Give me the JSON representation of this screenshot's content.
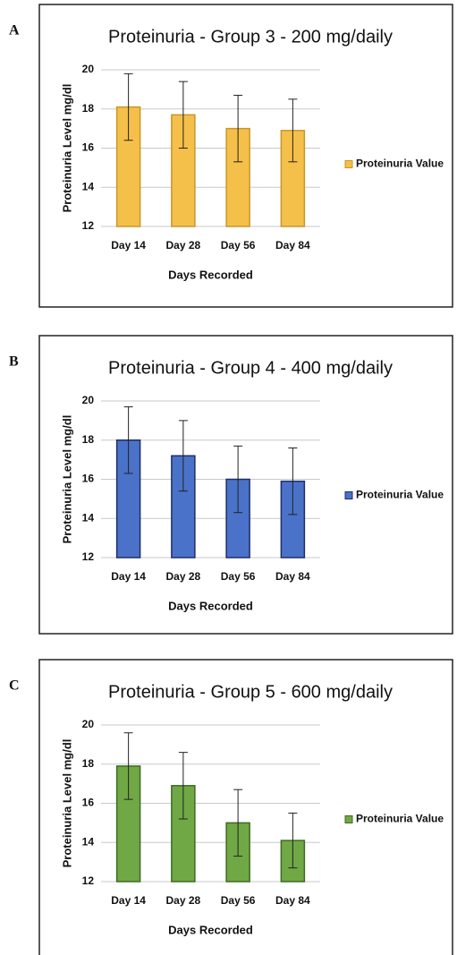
{
  "chart_data": [
    {
      "type": "bar",
      "panel": "A",
      "title": "Proteinuria - Group 3 - 200 mg/daily",
      "categories": [
        "Day 14",
        "Day 28",
        "Day 56",
        "Day 84"
      ],
      "series": [
        {
          "name": "Proteinuria Value",
          "color": "#f5c04a",
          "edgecolor": "#c8962a",
          "values": [
            18.1,
            17.7,
            17.0,
            16.9
          ],
          "errors": [
            1.7,
            1.7,
            1.7,
            1.6
          ]
        }
      ],
      "xlabel": "Days Recorded",
      "ylabel": "Proteinuria Level mg/dl",
      "ylim": [
        12,
        20
      ],
      "yticks": [
        12,
        14,
        16,
        18,
        20
      ],
      "grid": true,
      "legend": "right"
    },
    {
      "type": "bar",
      "panel": "B",
      "title": "Proteinuria - Group 4 - 400 mg/daily",
      "categories": [
        "Day 14",
        "Day 28",
        "Day 56",
        "Day 84"
      ],
      "series": [
        {
          "name": "Proteinuria Value",
          "color": "#4a72c8",
          "edgecolor": "#1f2e6b",
          "values": [
            18.0,
            17.2,
            16.0,
            15.9
          ],
          "errors": [
            1.7,
            1.8,
            1.7,
            1.7
          ]
        }
      ],
      "xlabel": "Days Recorded",
      "ylabel": "Proteinuria Level mg/dl",
      "ylim": [
        12,
        20
      ],
      "yticks": [
        12,
        14,
        16,
        18,
        20
      ],
      "grid": true,
      "legend": "right"
    },
    {
      "type": "bar",
      "panel": "C",
      "title": "Proteinuria - Group 5 - 600 mg/daily",
      "categories": [
        "Day 14",
        "Day 28",
        "Day 56",
        "Day 84"
      ],
      "series": [
        {
          "name": "Proteinuria Value",
          "color": "#70a845",
          "edgecolor": "#3f6a22",
          "values": [
            17.9,
            16.9,
            15.0,
            14.1
          ],
          "errors": [
            1.7,
            1.7,
            1.7,
            1.4
          ]
        }
      ],
      "xlabel": "Days Recorded",
      "ylabel": "Proteinuria Level mg/dl",
      "ylim": [
        12,
        20
      ],
      "yticks": [
        12,
        14,
        16,
        18,
        20
      ],
      "grid": true,
      "legend": "right"
    }
  ]
}
